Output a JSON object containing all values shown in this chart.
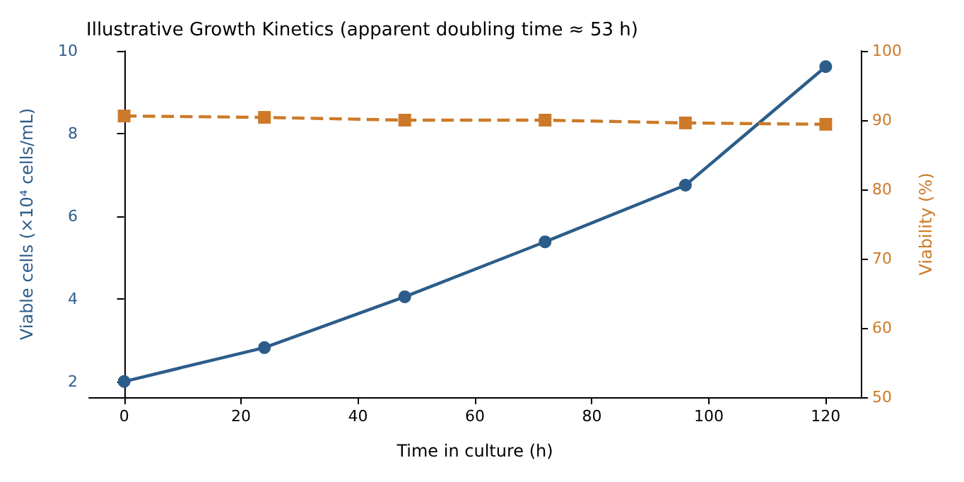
{
  "chart_data": {
    "type": "line",
    "title": "Illustrative Growth Kinetics (apparent doubling time ≈ 53 h)",
    "xlabel": "Time in culture (h)",
    "ylabel": "Viable cells (×10⁴ cells/mL)",
    "y2label": "Viability (%)",
    "x": [
      0,
      24,
      48,
      72,
      96,
      120
    ],
    "series": [
      {
        "color": "#2c5d8a",
        "marker": "circle",
        "line_style": "solid",
        "values": [
          2.0,
          2.82,
          4.05,
          5.38,
          6.75,
          9.62
        ]
      },
      {
        "color": "#cc7a29",
        "marker": "square",
        "line_style": "dashed",
        "axis": "y2",
        "values": [
          90.6,
          90.4,
          90.0,
          90.0,
          89.6,
          89.4
        ]
      }
    ],
    "xlim": [
      -6,
      126
    ],
    "xticks": [
      0,
      20,
      40,
      60,
      80,
      100,
      120
    ],
    "ylim": [
      1.62,
      10
    ],
    "yticks": [
      2,
      4,
      6,
      8,
      10
    ],
    "y2lim": [
      50,
      100
    ],
    "y2ticks": [
      50,
      60,
      70,
      80,
      90,
      100
    ]
  }
}
